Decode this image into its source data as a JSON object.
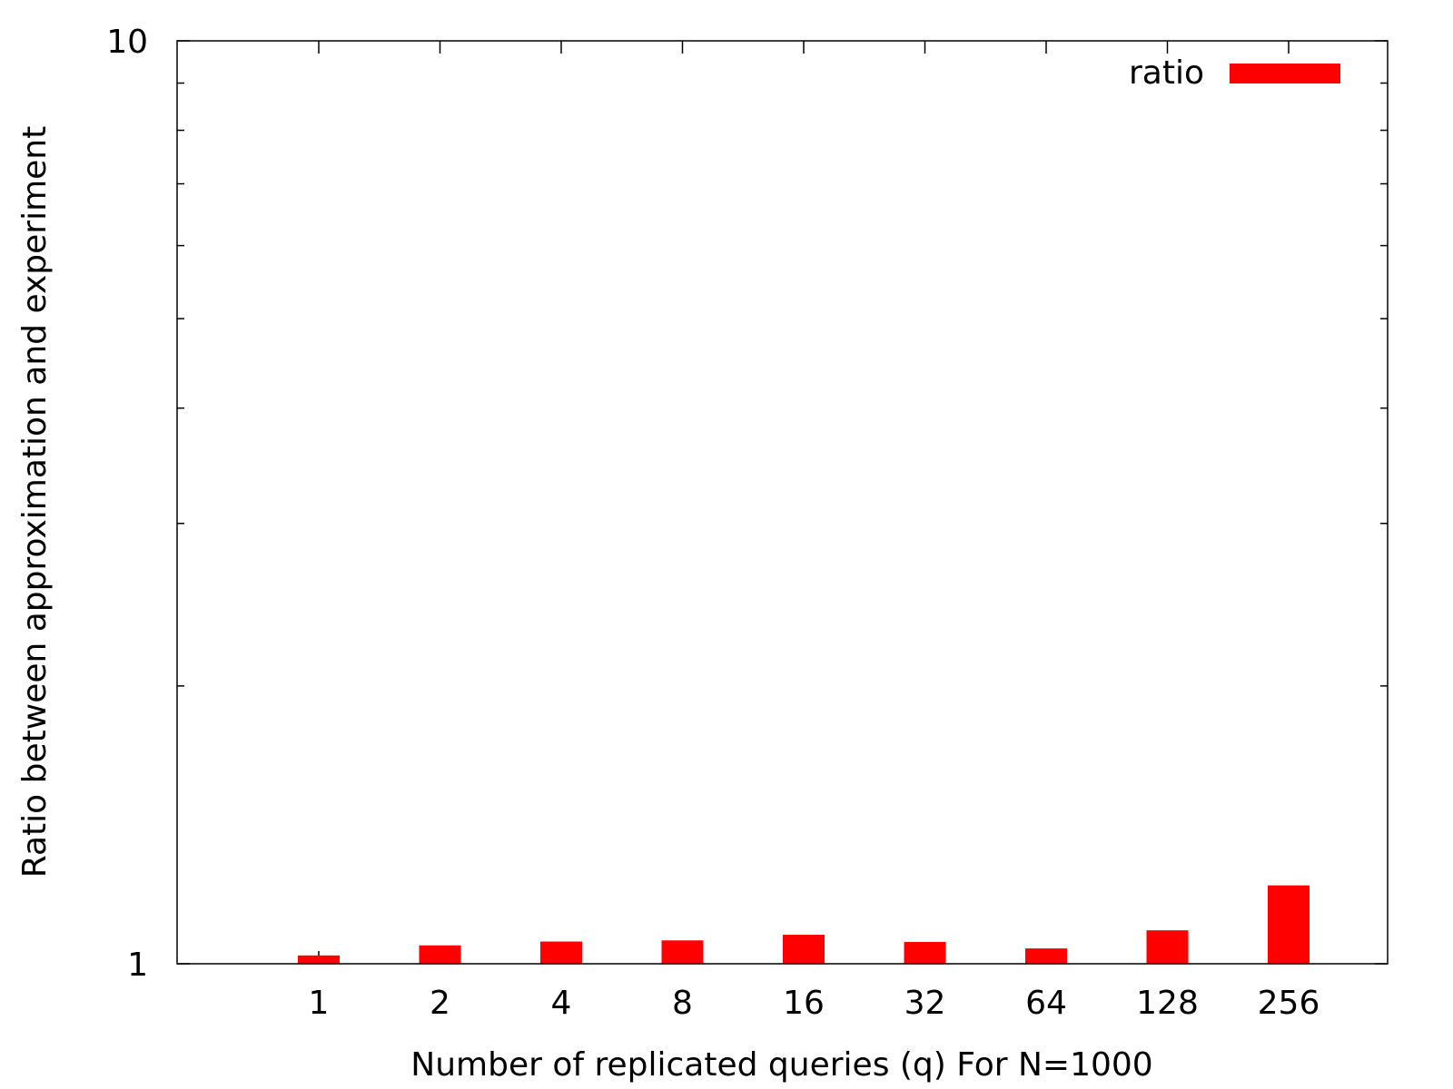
{
  "chart_data": {
    "type": "bar",
    "categories": [
      "1",
      "2",
      "4",
      "8",
      "16",
      "32",
      "64",
      "128",
      "256"
    ],
    "series": [
      {
        "name": "ratio",
        "color": "#ff0000",
        "values": [
          1.021,
          1.047,
          1.057,
          1.06,
          1.075,
          1.056,
          1.039,
          1.087,
          1.216
        ]
      }
    ],
    "title": "",
    "xlabel": "Number of replicated queries (q) For N=1000",
    "ylabel": "Ratio between approximation and experiment",
    "y_scale": "log",
    "ylim": [
      1,
      10
    ],
    "y_tick_labels": [
      "1",
      "10"
    ],
    "y_ticks": [
      1,
      2,
      3,
      4,
      5,
      6,
      7,
      8,
      9,
      10
    ],
    "legend": {
      "position": "top-right",
      "entries": [
        "ratio"
      ]
    },
    "grid": false
  }
}
